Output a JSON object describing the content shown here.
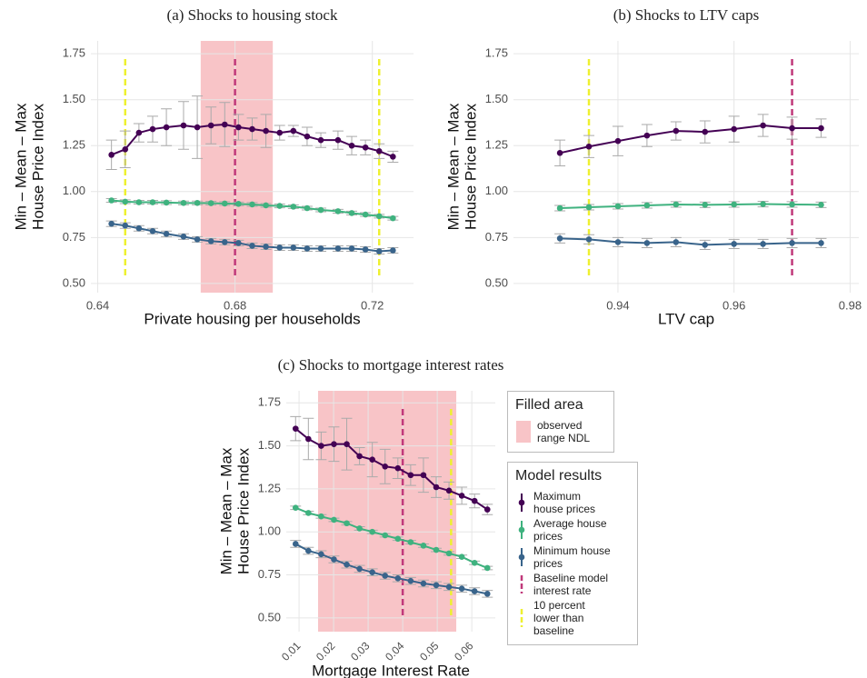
{
  "chart_data": [
    {
      "type": "line",
      "title": "(a) Shocks to housing stock",
      "x_label": "Private housing per households",
      "y_label": [
        "Min – Mean – Max",
        "House Price Index"
      ],
      "x": [
        0.644,
        0.648,
        0.652,
        0.656,
        0.66,
        0.665,
        0.669,
        0.673,
        0.677,
        0.681,
        0.685,
        0.689,
        0.693,
        0.697,
        0.701,
        0.705,
        0.71,
        0.714,
        0.718,
        0.722,
        0.726
      ],
      "series": [
        {
          "color": "#440154",
          "values": [
            1.2,
            1.23,
            1.32,
            1.34,
            1.35,
            1.36,
            1.35,
            1.36,
            1.365,
            1.35,
            1.34,
            1.33,
            1.32,
            1.33,
            1.3,
            1.28,
            1.28,
            1.25,
            1.24,
            1.22,
            1.19
          ],
          "errors": [
            0.08,
            0.1,
            0.05,
            0.07,
            0.1,
            0.13,
            0.17,
            0.1,
            0.12,
            0.07,
            0.06,
            0.09,
            0.04,
            0.03,
            0.05,
            0.04,
            0.05,
            0.05,
            0.04,
            0.04,
            0.03
          ]
        },
        {
          "color": "#3fb27f",
          "values": [
            0.952,
            0.945,
            0.942,
            0.942,
            0.94,
            0.938,
            0.938,
            0.937,
            0.935,
            0.933,
            0.93,
            0.925,
            0.922,
            0.918,
            0.91,
            0.9,
            0.893,
            0.883,
            0.875,
            0.866,
            0.855
          ],
          "errors": [
            0.01,
            0.01,
            0.01,
            0.01,
            0.01,
            0.01,
            0.01,
            0.01,
            0.01,
            0.01,
            0.01,
            0.01,
            0.01,
            0.01,
            0.01,
            0.01,
            0.01,
            0.01,
            0.01,
            0.01,
            0.01
          ]
        },
        {
          "color": "#39648b",
          "values": [
            0.825,
            0.815,
            0.8,
            0.785,
            0.77,
            0.755,
            0.74,
            0.73,
            0.725,
            0.72,
            0.705,
            0.7,
            0.695,
            0.695,
            0.69,
            0.69,
            0.69,
            0.69,
            0.685,
            0.675,
            0.68
          ],
          "errors": [
            0.015,
            0.015,
            0.015,
            0.015,
            0.015,
            0.015,
            0.015,
            0.015,
            0.015,
            0.015,
            0.015,
            0.015,
            0.015,
            0.015,
            0.015,
            0.015,
            0.015,
            0.015,
            0.015,
            0.015,
            0.015
          ]
        }
      ],
      "shade": {
        "range": [
          0.67,
          0.691
        ],
        "color": "#f8c4c7"
      },
      "vlines": [
        {
          "value": 0.68,
          "color": "#c0397a"
        },
        {
          "value": 0.648,
          "color": "#eef030"
        },
        {
          "value": 0.722,
          "color": "#eef030"
        }
      ],
      "xlim": [
        0.638,
        0.732
      ],
      "ylim": [
        0.45,
        1.82
      ],
      "xticks": [
        0.64,
        0.68,
        0.72
      ],
      "yticks": [
        {
          "value": 0.5,
          "label": "0.50"
        },
        {
          "value": 0.75,
          "label": "0.75"
        },
        {
          "value": 1,
          "label": "1.00"
        },
        {
          "value": 1.25,
          "label": "1.25"
        },
        {
          "value": 1.5,
          "label": "1.50"
        },
        {
          "value": 1.75,
          "label": "1.75"
        }
      ],
      "grid": true
    },
    {
      "type": "line",
      "title": "(b) Shocks to LTV caps",
      "x_label": "LTV cap",
      "y_label": [
        "Min – Mean – Max",
        "House Price Index"
      ],
      "x": [
        0.93,
        0.935,
        0.94,
        0.945,
        0.95,
        0.955,
        0.96,
        0.965,
        0.97,
        0.975
      ],
      "series": [
        {
          "color": "#440154",
          "values": [
            1.21,
            1.245,
            1.275,
            1.305,
            1.33,
            1.325,
            1.34,
            1.36,
            1.345,
            1.345
          ],
          "errors": [
            0.07,
            0.06,
            0.08,
            0.06,
            0.05,
            0.06,
            0.07,
            0.06,
            0.06,
            0.05
          ]
        },
        {
          "color": "#3fb27f",
          "values": [
            0.91,
            0.915,
            0.92,
            0.925,
            0.93,
            0.928,
            0.93,
            0.932,
            0.93,
            0.928
          ],
          "errors": [
            0.015,
            0.015,
            0.015,
            0.015,
            0.015,
            0.015,
            0.015,
            0.015,
            0.015,
            0.015
          ]
        },
        {
          "color": "#39648b",
          "values": [
            0.745,
            0.74,
            0.725,
            0.72,
            0.725,
            0.71,
            0.715,
            0.715,
            0.72,
            0.72
          ],
          "errors": [
            0.025,
            0.025,
            0.025,
            0.025,
            0.025,
            0.025,
            0.025,
            0.025,
            0.025,
            0.025
          ]
        }
      ],
      "vlines": [
        {
          "value": 0.97,
          "color": "#c0397a"
        },
        {
          "value": 0.935,
          "color": "#eef030"
        }
      ],
      "xlim": [
        0.922,
        0.9815
      ],
      "ylim": [
        0.45,
        1.82
      ],
      "xticks": [
        0.94,
        0.96,
        0.98
      ],
      "yticks": [
        {
          "value": 0.5,
          "label": "0.50"
        },
        {
          "value": 0.75,
          "label": "0.75"
        },
        {
          "value": 1,
          "label": "1.00"
        },
        {
          "value": 1.25,
          "label": "1.25"
        },
        {
          "value": 1.5,
          "label": "1.50"
        },
        {
          "value": 1.75,
          "label": "1.75"
        }
      ],
      "grid": true
    },
    {
      "type": "line",
      "title": "(c) Shocks to mortgage interest rates",
      "x_label": "Mortgage Interest Rate",
      "y_label": [
        "Min – Mean – Max",
        "House Price Index"
      ],
      "x": [
        0.009,
        0.0127,
        0.0164,
        0.0201,
        0.0238,
        0.0275,
        0.0312,
        0.0349,
        0.0386,
        0.0423,
        0.046,
        0.0497,
        0.0534,
        0.0571,
        0.0608,
        0.0645
      ],
      "series": [
        {
          "name": "Maximum house prices",
          "color": "#440154",
          "values": [
            1.6,
            1.54,
            1.5,
            1.51,
            1.51,
            1.44,
            1.42,
            1.38,
            1.37,
            1.33,
            1.33,
            1.26,
            1.24,
            1.21,
            1.18,
            1.13
          ],
          "errors": [
            0.07,
            0.12,
            0.08,
            0.1,
            0.15,
            0.05,
            0.1,
            0.1,
            0.06,
            0.06,
            0.1,
            0.06,
            0.05,
            0.05,
            0.04,
            0.03
          ]
        },
        {
          "name": "Average house prices",
          "color": "#3fb27f",
          "values": [
            1.14,
            1.11,
            1.09,
            1.07,
            1.05,
            1.02,
            1.0,
            0.98,
            0.96,
            0.94,
            0.92,
            0.895,
            0.875,
            0.855,
            0.82,
            0.79
          ],
          "errors": [
            0.01,
            0.01,
            0.01,
            0.01,
            0.01,
            0.01,
            0.01,
            0.01,
            0.01,
            0.01,
            0.01,
            0.01,
            0.01,
            0.01,
            0.01,
            0.01
          ]
        },
        {
          "name": "Minimum house prices",
          "color": "#39648b",
          "values": [
            0.93,
            0.89,
            0.87,
            0.84,
            0.81,
            0.785,
            0.765,
            0.745,
            0.73,
            0.715,
            0.7,
            0.69,
            0.68,
            0.67,
            0.655,
            0.64
          ],
          "errors": [
            0.02,
            0.02,
            0.02,
            0.02,
            0.02,
            0.02,
            0.02,
            0.02,
            0.02,
            0.02,
            0.02,
            0.02,
            0.02,
            0.02,
            0.02,
            0.02
          ]
        }
      ],
      "shade": {
        "name": "observed range NDL",
        "range": [
          0.0155,
          0.0555
        ],
        "color": "#f8c4c7"
      },
      "vlines": [
        {
          "name": "Baseline model interest rate",
          "value": 0.04,
          "color": "#c0397a"
        },
        {
          "name": "10 percent lower than baseline",
          "value": 0.054,
          "color": "#eef030"
        }
      ],
      "legend_titles": [
        "Filled area",
        "Model results"
      ],
      "xlim": [
        0.0063,
        0.0668
      ],
      "ylim": [
        0.42,
        1.82
      ],
      "xticks": [
        0.01,
        0.02,
        0.03,
        0.04,
        0.05,
        0.06
      ],
      "yticks": [
        {
          "value": 0.5,
          "label": "0.50"
        },
        {
          "value": 0.75,
          "label": "0.75"
        },
        {
          "value": 1,
          "label": "1.00"
        },
        {
          "value": 1.25,
          "label": "1.25"
        },
        {
          "value": 1.5,
          "label": "1.50"
        },
        {
          "value": 1.75,
          "label": "1.75"
        }
      ],
      "grid": true
    }
  ]
}
